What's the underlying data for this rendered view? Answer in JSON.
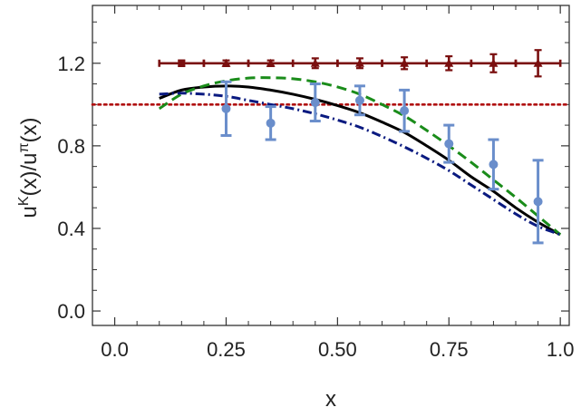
{
  "chart_data": {
    "type": "line",
    "title": "",
    "xlabel": "x",
    "ylabel": {
      "base": "u",
      "sup1": "K",
      "mid": "(x)/u",
      "sup2": "π",
      "tail": "(x)"
    },
    "xlim": [
      -0.05,
      1.02
    ],
    "ylim": [
      -0.07,
      1.48
    ],
    "x_ticks": [
      0.0,
      0.25,
      0.5,
      0.75,
      1.0
    ],
    "x_tick_labels": [
      "0.0",
      "0.25",
      "0.50",
      "0.75",
      "1.0"
    ],
    "y_ticks": [
      0.0,
      0.4,
      0.8,
      1.2
    ],
    "y_tick_labels": [
      "0.0",
      "0.4",
      "0.8",
      "1.2"
    ],
    "grid": false,
    "series": [
      {
        "style": "solid",
        "color": "#000000",
        "x": [
          0.1,
          0.15,
          0.2,
          0.25,
          0.3,
          0.35,
          0.4,
          0.45,
          0.5,
          0.55,
          0.6,
          0.65,
          0.7,
          0.75,
          0.8,
          0.85,
          0.9,
          0.95,
          1.0
        ],
        "y": [
          1.03,
          1.07,
          1.085,
          1.09,
          1.085,
          1.07,
          1.05,
          1.025,
          0.995,
          0.96,
          0.915,
          0.865,
          0.8,
          0.73,
          0.65,
          0.58,
          0.5,
          0.43,
          0.37
        ]
      },
      {
        "style": "dashed",
        "color": "#1a8c1a",
        "x": [
          0.1,
          0.15,
          0.2,
          0.25,
          0.3,
          0.35,
          0.4,
          0.45,
          0.5,
          0.55,
          0.6,
          0.65,
          0.7,
          0.75,
          0.8,
          0.85,
          0.9,
          0.95,
          1.0
        ],
        "y": [
          0.98,
          1.05,
          1.09,
          1.115,
          1.128,
          1.13,
          1.125,
          1.11,
          1.085,
          1.05,
          1.0,
          0.945,
          0.875,
          0.8,
          0.72,
          0.635,
          0.55,
          0.46,
          0.37
        ]
      },
      {
        "style": "dashdot",
        "color": "#0a1a80",
        "x": [
          0.1,
          0.15,
          0.2,
          0.25,
          0.3,
          0.35,
          0.4,
          0.45,
          0.5,
          0.55,
          0.6,
          0.65,
          0.7,
          0.75,
          0.8,
          0.85,
          0.9,
          0.95,
          1.0
        ],
        "y": [
          1.05,
          1.055,
          1.05,
          1.04,
          1.02,
          1.0,
          0.98,
          0.955,
          0.925,
          0.89,
          0.845,
          0.795,
          0.74,
          0.68,
          0.61,
          0.54,
          0.47,
          0.41,
          0.37
        ]
      }
    ],
    "reference_line": {
      "y": 1.0,
      "style": "dotted",
      "color": "#b01010"
    },
    "points_blue": {
      "color": "#6a8ecb",
      "x": [
        0.25,
        0.35,
        0.45,
        0.55,
        0.65,
        0.75,
        0.85,
        0.95
      ],
      "y": [
        0.98,
        0.91,
        1.01,
        1.02,
        0.97,
        0.81,
        0.71,
        0.53
      ],
      "err_y": [
        0.13,
        0.08,
        0.09,
        0.07,
        0.1,
        0.09,
        0.12,
        0.2
      ]
    },
    "points_red": {
      "color": "#7a0f0f",
      "x": [
        0.15,
        0.25,
        0.35,
        0.45,
        0.55,
        0.65,
        0.75,
        0.85,
        0.95
      ],
      "y": [
        1.2,
        1.2,
        1.2,
        1.2,
        1.2,
        1.2,
        1.2,
        1.2,
        1.2
      ],
      "err_x": [
        0.05,
        0.05,
        0.05,
        0.05,
        0.05,
        0.05,
        0.05,
        0.05,
        0.05
      ],
      "err_y": [
        0.005,
        0.005,
        0.005,
        0.015,
        0.015,
        0.02,
        0.025,
        0.035,
        0.055
      ]
    }
  }
}
